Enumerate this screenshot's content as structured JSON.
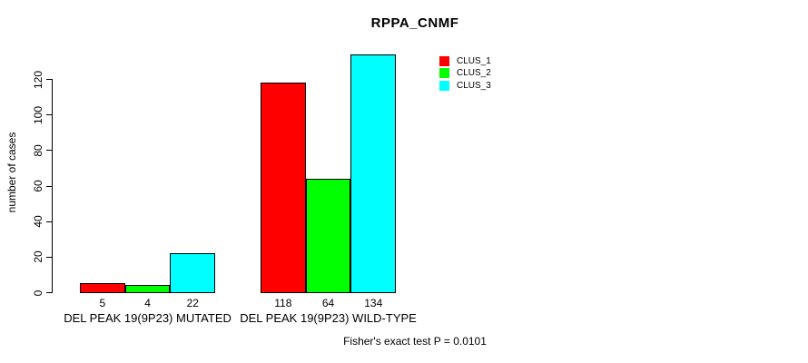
{
  "colors": {
    "background": "#ffffff",
    "text": "#000000",
    "clus1": "#ff0000",
    "clus2": "#00ff00",
    "clus3": "#00ffff"
  },
  "chart_data": {
    "type": "bar",
    "title": "RPPA_CNMF",
    "xlabel": "",
    "ylabel": "number of cases",
    "categories": [
      "DEL PEAK 19(9P23) MUTATED",
      "DEL PEAK 19(9P23) WILD-TYPE"
    ],
    "series": [
      {
        "name": "CLUS_1",
        "color": "#ff0000",
        "values": [
          5,
          118
        ]
      },
      {
        "name": "CLUS_2",
        "color": "#00ff00",
        "values": [
          4,
          64
        ]
      },
      {
        "name": "CLUS_3",
        "color": "#00ffff",
        "values": [
          22,
          134
        ]
      }
    ],
    "bar_value_labels": [
      [
        "5",
        "4",
        "22"
      ],
      [
        "118",
        "64",
        "134"
      ]
    ],
    "yticks": [
      0,
      20,
      40,
      60,
      80,
      100,
      120
    ],
    "ylim": [
      0,
      134
    ],
    "grid": false,
    "legend_position": "top-right",
    "annotation": "Fisher's exact test P = 0.0101"
  }
}
